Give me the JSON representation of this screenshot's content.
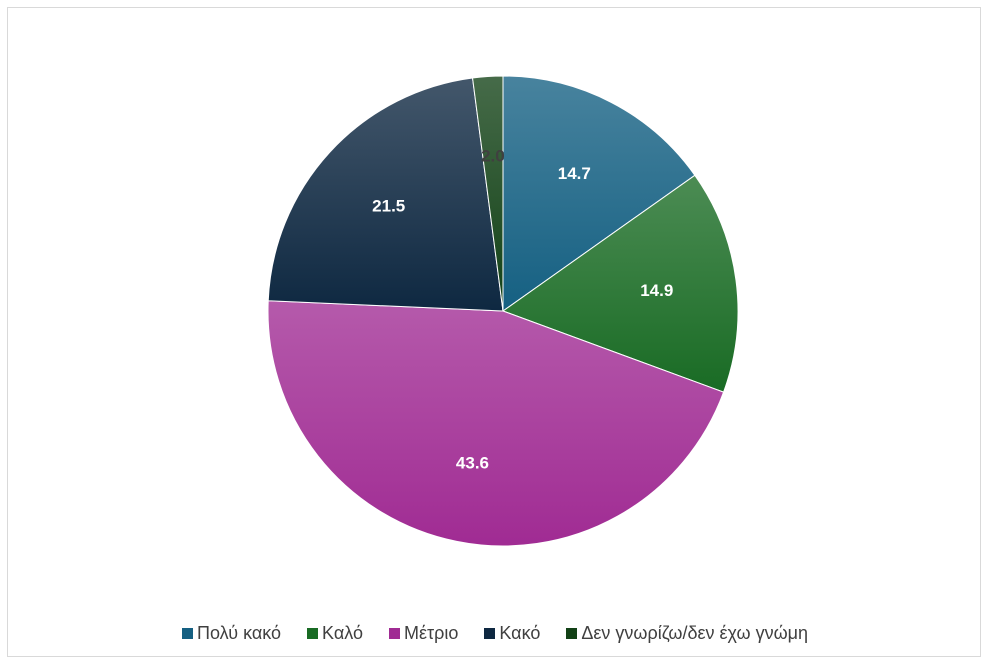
{
  "chart_data": {
    "type": "pie",
    "title": "",
    "categories": [
      "Πολύ κακό",
      "Καλό",
      "Μέτριο",
      "Κακό",
      "Δεν γνωρίζω/δεν έχω γνώμη"
    ],
    "values": [
      14.7,
      14.9,
      43.6,
      21.5,
      2.0
    ],
    "value_labels": [
      "14.7",
      "14.9",
      "43.6",
      "21.5",
      "2.0"
    ],
    "colors": [
      "#156082",
      "#196B24",
      "#A02B93",
      "#0E2841",
      "#124116"
    ],
    "label_colors": [
      "#ffffff",
      "#ffffff",
      "#ffffff",
      "#ffffff",
      "#404040"
    ],
    "start_angle_deg": 0,
    "direction": "clockwise",
    "legend_position": "bottom"
  }
}
